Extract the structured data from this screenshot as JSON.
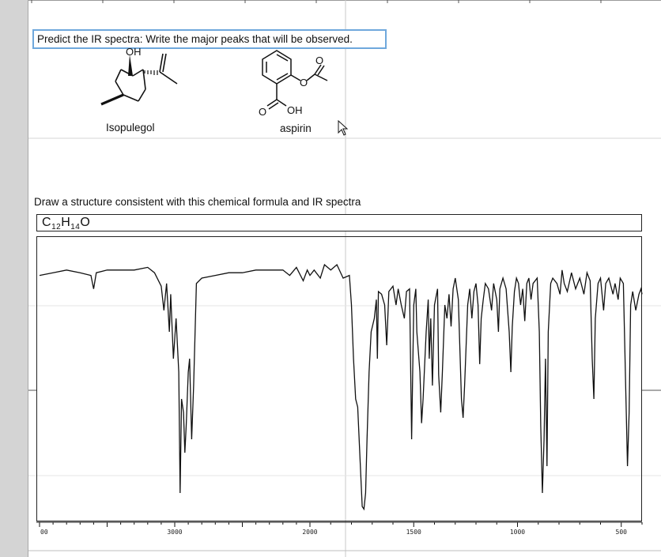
{
  "question": {
    "text": "Predict the IR spectra: Write the major peaks that will be observed."
  },
  "molecules": [
    {
      "name": "Isopulegol",
      "atoms": [
        "OH"
      ]
    },
    {
      "name": "aspirin",
      "atoms": [
        "O",
        "O",
        "O",
        "OH"
      ]
    }
  ],
  "task": {
    "text": "Draw a structure consistent with this chemical formula and IR spectra"
  },
  "formula": {
    "c": "C",
    "c_count": "12",
    "h": "H",
    "h_count": "14",
    "o": "O"
  },
  "chart_data": {
    "type": "line",
    "title": "",
    "xlabel": "",
    "ylabel": "",
    "x_ticks": [
      "00",
      "3000",
      "2000",
      "1500",
      "1000",
      "500"
    ],
    "xlim": [
      4000,
      400
    ],
    "x_axis_note": "wavenumber axis is nonlinear: 4000-2000 at half the spacing of 2000-400",
    "series": [
      {
        "name": "",
        "points": [
          [
            4000,
            0.91
          ],
          [
            3900,
            0.92
          ],
          [
            3800,
            0.93
          ],
          [
            3700,
            0.92
          ],
          [
            3620,
            0.91
          ],
          [
            3600,
            0.86
          ],
          [
            3580,
            0.92
          ],
          [
            3500,
            0.93
          ],
          [
            3400,
            0.93
          ],
          [
            3300,
            0.93
          ],
          [
            3200,
            0.94
          ],
          [
            3150,
            0.92
          ],
          [
            3100,
            0.87
          ],
          [
            3080,
            0.78
          ],
          [
            3060,
            0.88
          ],
          [
            3040,
            0.7
          ],
          [
            3030,
            0.84
          ],
          [
            3010,
            0.6
          ],
          [
            2990,
            0.75
          ],
          [
            2970,
            0.55
          ],
          [
            2960,
            0.1
          ],
          [
            2950,
            0.45
          ],
          [
            2935,
            0.4
          ],
          [
            2925,
            0.25
          ],
          [
            2915,
            0.35
          ],
          [
            2900,
            0.55
          ],
          [
            2890,
            0.6
          ],
          [
            2875,
            0.3
          ],
          [
            2860,
            0.5
          ],
          [
            2840,
            0.88
          ],
          [
            2800,
            0.9
          ],
          [
            2700,
            0.91
          ],
          [
            2600,
            0.92
          ],
          [
            2500,
            0.92
          ],
          [
            2400,
            0.93
          ],
          [
            2300,
            0.93
          ],
          [
            2200,
            0.93
          ],
          [
            2150,
            0.91
          ],
          [
            2100,
            0.94
          ],
          [
            2050,
            0.89
          ],
          [
            2020,
            0.93
          ],
          [
            2000,
            0.91
          ],
          [
            1980,
            0.93
          ],
          [
            1950,
            0.9
          ],
          [
            1930,
            0.95
          ],
          [
            1900,
            0.93
          ],
          [
            1870,
            0.95
          ],
          [
            1840,
            0.9
          ],
          [
            1810,
            0.91
          ],
          [
            1800,
            0.8
          ],
          [
            1790,
            0.6
          ],
          [
            1780,
            0.45
          ],
          [
            1770,
            0.42
          ],
          [
            1760,
            0.25
          ],
          [
            1748,
            0.05
          ],
          [
            1740,
            0.04
          ],
          [
            1732,
            0.1
          ],
          [
            1725,
            0.3
          ],
          [
            1715,
            0.55
          ],
          [
            1705,
            0.7
          ],
          [
            1690,
            0.75
          ],
          [
            1680,
            0.82
          ],
          [
            1675,
            0.6
          ],
          [
            1670,
            0.85
          ],
          [
            1655,
            0.84
          ],
          [
            1640,
            0.8
          ],
          [
            1630,
            0.65
          ],
          [
            1620,
            0.85
          ],
          [
            1600,
            0.87
          ],
          [
            1585,
            0.8
          ],
          [
            1575,
            0.86
          ],
          [
            1560,
            0.8
          ],
          [
            1545,
            0.75
          ],
          [
            1535,
            0.85
          ],
          [
            1520,
            0.86
          ],
          [
            1510,
            0.3
          ],
          [
            1500,
            0.8
          ],
          [
            1490,
            0.86
          ],
          [
            1485,
            0.7
          ],
          [
            1470,
            0.55
          ],
          [
            1462,
            0.36
          ],
          [
            1455,
            0.45
          ],
          [
            1440,
            0.7
          ],
          [
            1430,
            0.82
          ],
          [
            1425,
            0.6
          ],
          [
            1418,
            0.75
          ],
          [
            1410,
            0.5
          ],
          [
            1400,
            0.8
          ],
          [
            1385,
            0.86
          ],
          [
            1380,
            0.54
          ],
          [
            1370,
            0.4
          ],
          [
            1362,
            0.55
          ],
          [
            1350,
            0.8
          ],
          [
            1340,
            0.75
          ],
          [
            1330,
            0.84
          ],
          [
            1320,
            0.72
          ],
          [
            1310,
            0.86
          ],
          [
            1300,
            0.9
          ],
          [
            1285,
            0.82
          ],
          [
            1270,
            0.45
          ],
          [
            1262,
            0.38
          ],
          [
            1255,
            0.5
          ],
          [
            1240,
            0.8
          ],
          [
            1230,
            0.86
          ],
          [
            1220,
            0.75
          ],
          [
            1210,
            0.85
          ],
          [
            1200,
            0.88
          ],
          [
            1190,
            0.8
          ],
          [
            1182,
            0.58
          ],
          [
            1175,
            0.75
          ],
          [
            1165,
            0.82
          ],
          [
            1155,
            0.88
          ],
          [
            1140,
            0.86
          ],
          [
            1125,
            0.78
          ],
          [
            1115,
            0.88
          ],
          [
            1100,
            0.82
          ],
          [
            1092,
            0.7
          ],
          [
            1085,
            0.86
          ],
          [
            1070,
            0.9
          ],
          [
            1055,
            0.86
          ],
          [
            1040,
            0.7
          ],
          [
            1032,
            0.55
          ],
          [
            1025,
            0.72
          ],
          [
            1015,
            0.85
          ],
          [
            1005,
            0.9
          ],
          [
            995,
            0.88
          ],
          [
            985,
            0.8
          ],
          [
            975,
            0.86
          ],
          [
            965,
            0.74
          ],
          [
            955,
            0.88
          ],
          [
            945,
            0.9
          ],
          [
            935,
            0.82
          ],
          [
            925,
            0.88
          ],
          [
            905,
            0.9
          ],
          [
            895,
            0.7
          ],
          [
            888,
            0.35
          ],
          [
            880,
            0.1
          ],
          [
            872,
            0.3
          ],
          [
            865,
            0.6
          ],
          [
            858,
            0.2
          ],
          [
            852,
            0.7
          ],
          [
            840,
            0.88
          ],
          [
            830,
            0.9
          ],
          [
            810,
            0.88
          ],
          [
            795,
            0.84
          ],
          [
            785,
            0.93
          ],
          [
            775,
            0.88
          ],
          [
            760,
            0.85
          ],
          [
            740,
            0.92
          ],
          [
            720,
            0.86
          ],
          [
            700,
            0.9
          ],
          [
            680,
            0.84
          ],
          [
            665,
            0.92
          ],
          [
            650,
            0.89
          ],
          [
            640,
            0.6
          ],
          [
            632,
            0.45
          ],
          [
            625,
            0.75
          ],
          [
            612,
            0.88
          ],
          [
            600,
            0.9
          ],
          [
            585,
            0.78
          ],
          [
            575,
            0.88
          ],
          [
            560,
            0.9
          ],
          [
            540,
            0.84
          ],
          [
            530,
            0.88
          ],
          [
            515,
            0.82
          ],
          [
            505,
            0.9
          ],
          [
            490,
            0.88
          ],
          [
            470,
            0.2
          ],
          [
            462,
            0.4
          ],
          [
            455,
            0.8
          ],
          [
            445,
            0.85
          ],
          [
            430,
            0.78
          ],
          [
            415,
            0.84
          ],
          [
            405,
            0.86
          ],
          [
            400,
            0.84
          ]
        ]
      }
    ]
  }
}
